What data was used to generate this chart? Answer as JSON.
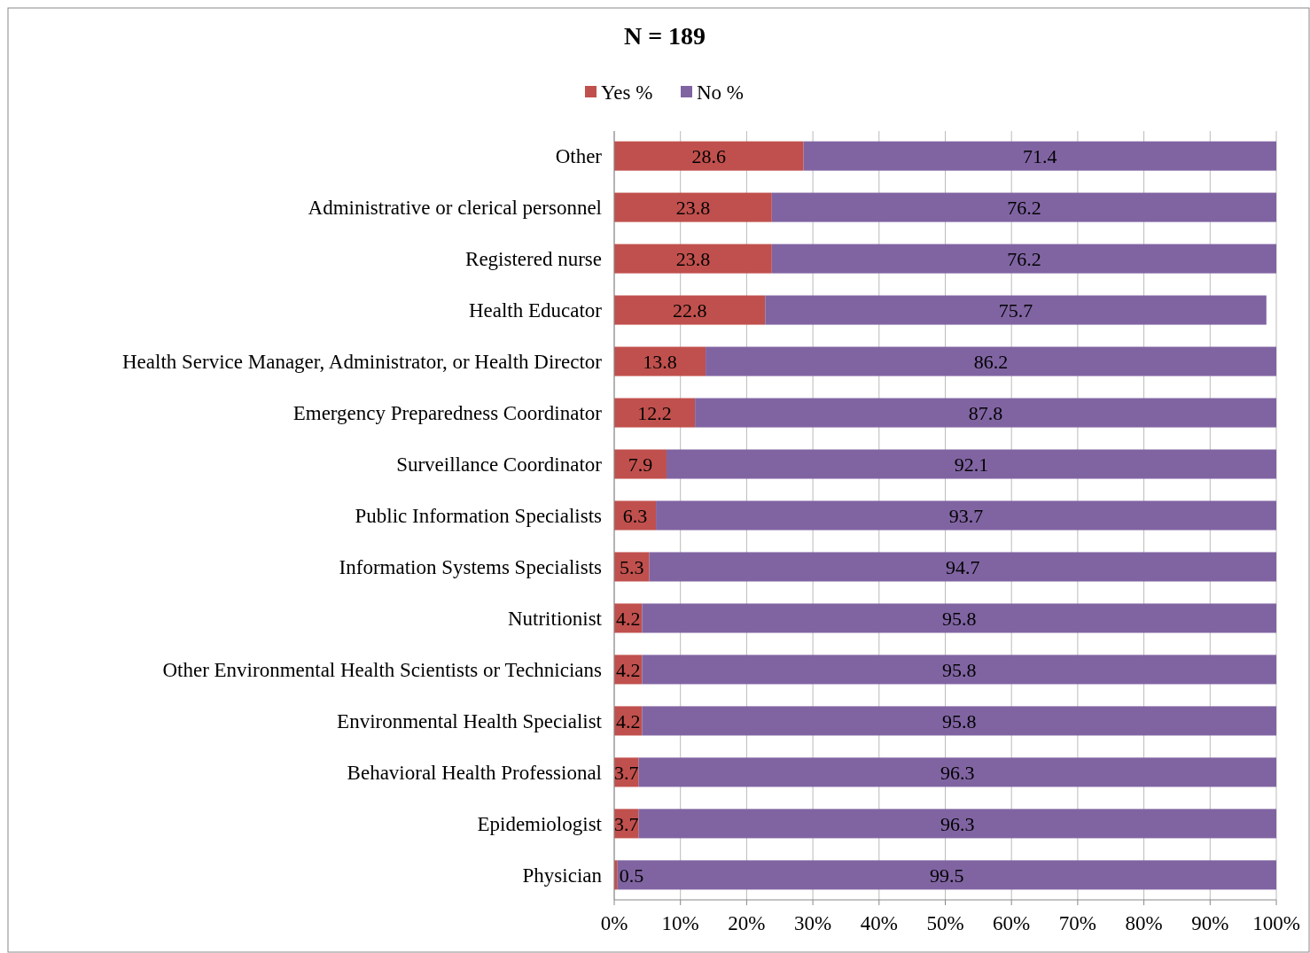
{
  "chart_data": {
    "type": "bar",
    "orientation": "horizontal",
    "stacked": true,
    "title": "N = 189",
    "categories": [
      "Other",
      "Administrative or clerical personnel",
      "Registered nurse",
      "Health Educator",
      "Health Service Manager, Administrator, or Health Director",
      "Emergency Preparedness Coordinator",
      "Surveillance Coordinator",
      "Public Information Specialists",
      "Information Systems Specialists",
      "Nutritionist",
      "Other Environmental Health Scientists or Technicians",
      "Environmental Health Specialist",
      "Behavioral Health Professional",
      "Epidemiologist",
      "Physician"
    ],
    "series": [
      {
        "name": "Yes %",
        "color": "#c0504d",
        "values": [
          28.6,
          23.8,
          23.8,
          22.8,
          13.8,
          12.2,
          7.9,
          6.3,
          5.3,
          4.2,
          4.2,
          4.2,
          3.7,
          3.7,
          0.5
        ]
      },
      {
        "name": "No %",
        "color": "#8064a2",
        "values": [
          71.4,
          76.2,
          76.2,
          75.7,
          86.2,
          87.8,
          92.1,
          93.7,
          94.7,
          95.8,
          95.8,
          95.8,
          96.3,
          96.3,
          99.5
        ]
      }
    ],
    "xlim": [
      0,
      100
    ],
    "xticks": [
      {
        "value": 0,
        "label": "0%"
      },
      {
        "value": 10,
        "label": "10%"
      },
      {
        "value": 20,
        "label": "20%"
      },
      {
        "value": 30,
        "label": "30%"
      },
      {
        "value": 40,
        "label": "40%"
      },
      {
        "value": 50,
        "label": "50%"
      },
      {
        "value": 60,
        "label": "60%"
      },
      {
        "value": 70,
        "label": "70%"
      },
      {
        "value": 80,
        "label": "80%"
      },
      {
        "value": 90,
        "label": "90%"
      },
      {
        "value": 100,
        "label": "100%"
      }
    ],
    "grid": "x",
    "legend": "top",
    "data_labels": true
  }
}
